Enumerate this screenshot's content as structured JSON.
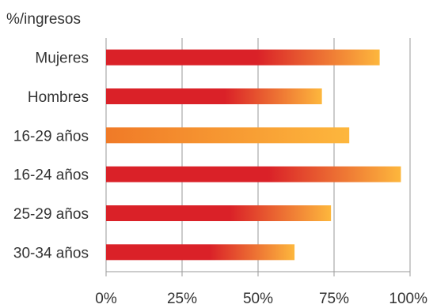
{
  "chart_data": {
    "type": "bar",
    "orientation": "horizontal",
    "ylabel": "%/ingresos",
    "categories": [
      "Mujeres",
      "Hombres",
      "16-29 años",
      "16-24 años",
      "25-29 años",
      "30-34 años"
    ],
    "values": [
      90,
      71,
      80,
      97,
      74,
      62
    ],
    "xlim": [
      0,
      100
    ],
    "xticks": [
      0,
      25,
      50,
      75,
      100
    ],
    "xtick_labels": [
      "0%",
      "25%",
      "50%",
      "75%",
      "100%"
    ],
    "grid": "vertical",
    "colors": {
      "bar_start": "#da2128",
      "bar_end": "#fdb73d",
      "highlight_start": "#f07a27",
      "highlight_end": "#fdb73d",
      "grid": "#9a9a9a"
    },
    "highlight_category": "16-29 años"
  }
}
